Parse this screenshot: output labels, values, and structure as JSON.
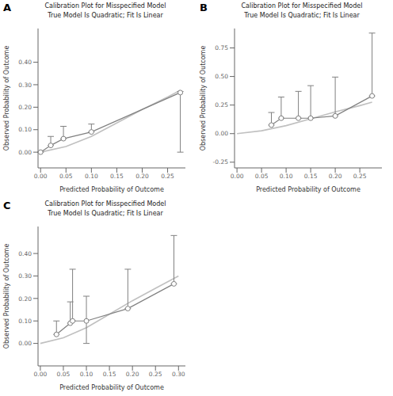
{
  "chart_data": [
    {
      "type": "line",
      "title": "Calibration Plot for Misspecified Model",
      "subtitle": "True Model Is Quadratic; Fit Is Linear",
      "x_label": "Predicted Probability of Outcome",
      "y_label": "Observed Probability of Outcome",
      "annotations": [
        "A"
      ],
      "xlim": [
        -0.005,
        0.285
      ],
      "ylim": [
        -0.07,
        0.55
      ],
      "xticks": [
        {
          "value": 0.0,
          "label": "0.00"
        },
        0.05,
        {
          "value": 0.1,
          "label": "0.10"
        },
        0.15,
        {
          "value": 0.2,
          "label": "0.20"
        },
        0.25
      ],
      "yticks": [
        {
          "value": 0.0,
          "label": "0.00"
        },
        {
          "value": 0.1,
          "label": "0.10"
        },
        {
          "value": 0.2,
          "label": "0.20"
        },
        {
          "value": 0.3,
          "label": "0.30"
        },
        {
          "value": 0.4,
          "label": "0.40"
        }
      ],
      "grid": false,
      "series": [
        {
          "type": "line",
          "color": "#c0c0c0",
          "x": [
            0.0,
            0.05,
            0.1,
            0.15,
            0.2,
            0.25,
            0.275
          ],
          "values": [
            0.0,
            0.025,
            0.07,
            0.13,
            0.19,
            0.245,
            0.275
          ]
        },
        {
          "type": "line",
          "marker": "circle",
          "color": "#808080",
          "x": [
            0.0,
            0.02,
            0.045,
            0.1,
            0.275
          ],
          "values": [
            0.0,
            0.03,
            0.06,
            0.09,
            0.265
          ],
          "error_minus": [
            0.0,
            0.0,
            0.0,
            0.0,
            0.265
          ],
          "error_plus": [
            0.0,
            0.04,
            0.055,
            0.035,
            0.005
          ]
        }
      ]
    },
    {
      "type": "line",
      "title": "Calibration Plot for Misspecified Model",
      "subtitle": "True Model Is Quadratic; Fit Is Linear",
      "x_label": "Predicted Probability of Outcome",
      "y_label": "Observed Probability of Outcome",
      "annotations": [
        "B"
      ],
      "xlim": [
        -0.005,
        0.295
      ],
      "ylim": [
        -0.3,
        0.92
      ],
      "xticks": [
        {
          "value": 0.0,
          "label": "0.00"
        },
        0.05,
        {
          "value": 0.1,
          "label": "0.10"
        },
        0.15,
        {
          "value": 0.2,
          "label": "0.20"
        },
        0.25
      ],
      "yticks": [
        -0.25,
        {
          "value": 0.0,
          "label": "0.00"
        },
        0.25,
        {
          "value": 0.5,
          "label": "0.50"
        },
        0.75
      ],
      "grid": false,
      "series": [
        {
          "type": "line",
          "color": "#c0c0c0",
          "x": [
            0.0,
            0.05,
            0.1,
            0.15,
            0.2,
            0.25,
            0.275
          ],
          "values": [
            0.0,
            0.025,
            0.07,
            0.13,
            0.19,
            0.245,
            0.275
          ]
        },
        {
          "type": "line",
          "marker": "circle",
          "color": "#808080",
          "x": [
            0.07,
            0.09,
            0.125,
            0.15,
            0.2,
            0.275
          ],
          "values": [
            0.075,
            0.135,
            0.135,
            0.135,
            0.155,
            0.33
          ],
          "error_minus": [
            0.0,
            0.0,
            0.0,
            0.0,
            0.0,
            0.0
          ],
          "error_plus": [
            0.11,
            0.185,
            0.235,
            0.285,
            0.34,
            0.55
          ]
        }
      ]
    },
    {
      "type": "line",
      "title": "Calibration Plot for Misspecified Model",
      "subtitle": "True Model Is Quadratic; Fit Is Linear",
      "x_label": "Predicted Probability of Outcome",
      "y_label": "Observed Probability of Outcome",
      "annotations": [
        "C"
      ],
      "xlim": [
        -0.005,
        0.315
      ],
      "ylim": [
        -0.1,
        0.52
      ],
      "xticks": [
        {
          "value": 0.0,
          "label": "0.00"
        },
        0.05,
        {
          "value": 0.1,
          "label": "0.10"
        },
        0.15,
        {
          "value": 0.2,
          "label": "0.20"
        },
        0.25,
        {
          "value": 0.3,
          "label": "0.30"
        }
      ],
      "yticks": [
        {
          "value": 0.0,
          "label": "0.00"
        },
        {
          "value": 0.1,
          "label": "0.10"
        },
        {
          "value": 0.2,
          "label": "0.20"
        },
        {
          "value": 0.3,
          "label": "0.30"
        },
        {
          "value": 0.4,
          "label": "0.40"
        }
      ],
      "grid": false,
      "series": [
        {
          "type": "line",
          "color": "#c0c0c0",
          "x": [
            0.0,
            0.05,
            0.1,
            0.15,
            0.2,
            0.25,
            0.3
          ],
          "values": [
            0.0,
            0.025,
            0.07,
            0.13,
            0.19,
            0.245,
            0.3
          ]
        },
        {
          "type": "line",
          "marker": "circle",
          "color": "#808080",
          "x": [
            0.035,
            0.065,
            0.07,
            0.1,
            0.19,
            0.29
          ],
          "values": [
            0.04,
            0.09,
            0.1,
            0.1,
            0.155,
            0.265
          ],
          "error_minus": [
            0.0,
            0.0,
            0.0,
            0.1,
            0.0,
            0.0
          ],
          "error_plus": [
            0.06,
            0.095,
            0.23,
            0.11,
            0.175,
            0.215
          ]
        }
      ]
    }
  ]
}
